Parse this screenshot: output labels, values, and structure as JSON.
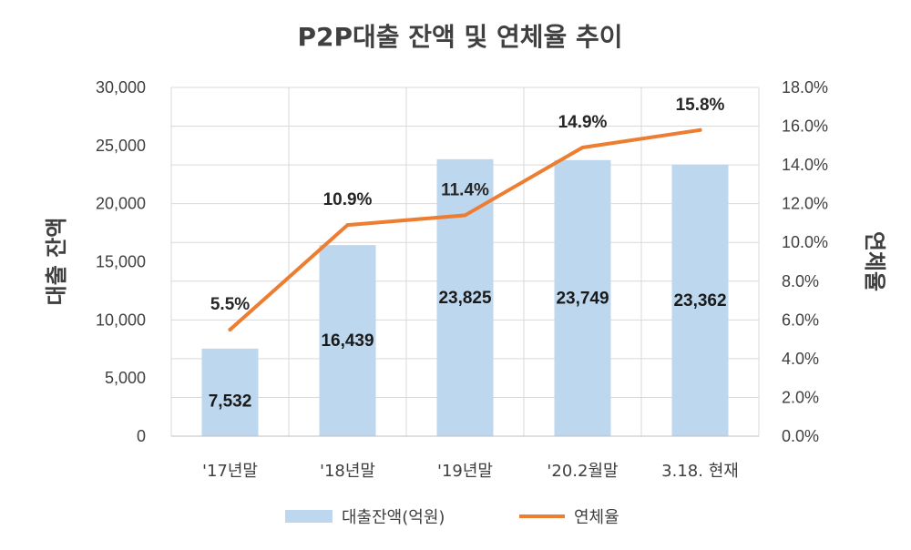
{
  "chart_data": {
    "type": "bar",
    "title": "P2P대출 잔액 및 연체율 추이",
    "categories": [
      "'17년말",
      "'18년말",
      "'19년말",
      "'20.2월말",
      "3.18. 현재"
    ],
    "series": [
      {
        "name": "대출잔액(억원)",
        "type": "bar",
        "axis": "left",
        "values": [
          7532,
          16439,
          23825,
          23749,
          23362
        ],
        "labels": [
          "7,532",
          "16,439",
          "23,825",
          "23,749",
          "23,362"
        ],
        "color": "#bdd7ee"
      },
      {
        "name": "연체율",
        "type": "line",
        "axis": "right",
        "values": [
          5.5,
          10.9,
          11.4,
          14.9,
          15.8
        ],
        "labels": [
          "5.5%",
          "10.9%",
          "11.4%",
          "14.9%",
          "15.8%"
        ],
        "color": "#ed7d31"
      }
    ],
    "ylabel": "대출 잔액",
    "y2label": "연체율",
    "ylim": [
      0,
      30000
    ],
    "y2lim": [
      0,
      18
    ],
    "yticks": [
      "0",
      "5,000",
      "10,000",
      "15,000",
      "20,000",
      "25,000",
      "30,000"
    ],
    "y2ticks": [
      "0.0%",
      "2.0%",
      "4.0%",
      "6.0%",
      "8.0%",
      "10.0%",
      "12.0%",
      "14.0%",
      "16.0%",
      "18.0%"
    ],
    "grid": true,
    "legend": "bottom"
  }
}
